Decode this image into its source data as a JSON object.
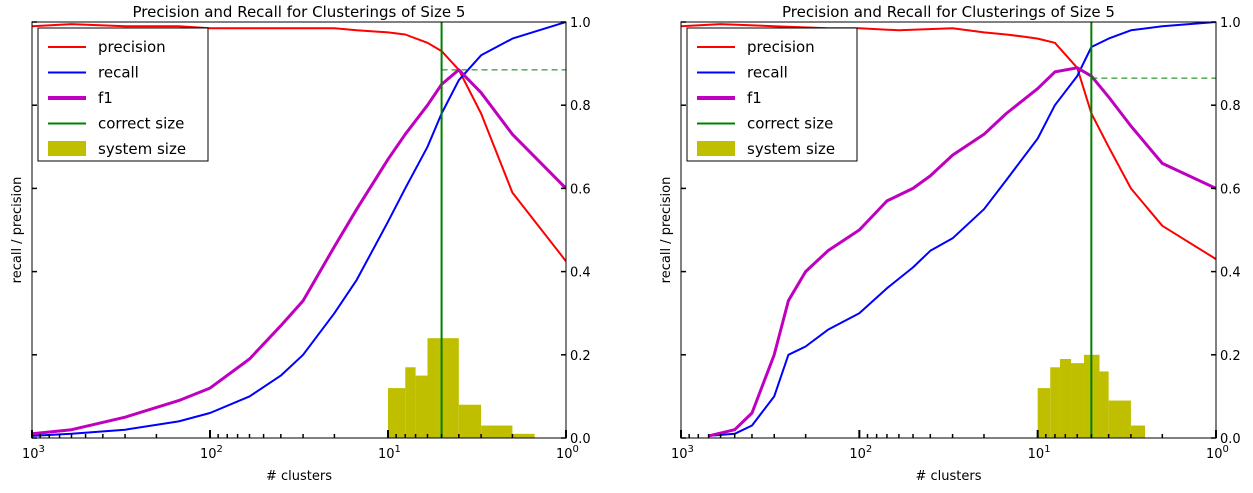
{
  "colors": {
    "precision": "#ff0000",
    "recall": "#0000ff",
    "f1": "#bf00bf",
    "correct": "#008000",
    "system": "#bfbf00",
    "threshold": "#008000"
  },
  "chart_data": [
    {
      "type": "line",
      "title": "Precision and Recall for Clusterings of Size 5",
      "xlabel": "# clusters",
      "ylabel": "recall / precision",
      "x_scale": "log",
      "x_reversed": true,
      "xlim": [
        1000,
        1
      ],
      "ylim": [
        0,
        1
      ],
      "grid": false,
      "legend_position": "top-left",
      "legend": [
        "precision",
        "recall",
        "f1",
        "correct size",
        "system size"
      ],
      "x_ticks": [
        {
          "base": "10",
          "exp": "3"
        },
        {
          "base": "10",
          "exp": "2"
        },
        {
          "base": "10",
          "exp": "1"
        },
        {
          "base": "10",
          "exp": "0"
        }
      ],
      "y_ticks": [
        "0.0",
        "0.2",
        "0.4",
        "0.6",
        "0.8",
        "1.0"
      ],
      "correct_size": 5,
      "series": [
        {
          "name": "precision",
          "x": [
            1000,
            600,
            300,
            150,
            100,
            60,
            30,
            20,
            15,
            10,
            8,
            6,
            5,
            4,
            3,
            2,
            1
          ],
          "y": [
            0.99,
            0.995,
            0.99,
            0.99,
            0.985,
            0.985,
            0.985,
            0.985,
            0.98,
            0.975,
            0.97,
            0.95,
            0.93,
            0.885,
            0.78,
            0.59,
            0.425
          ]
        },
        {
          "name": "recall",
          "x": [
            1000,
            600,
            300,
            150,
            100,
            60,
            40,
            30,
            20,
            15,
            10,
            8,
            6,
            5,
            4,
            3,
            2,
            1
          ],
          "y": [
            0.005,
            0.01,
            0.02,
            0.04,
            0.06,
            0.1,
            0.15,
            0.2,
            0.3,
            0.38,
            0.52,
            0.6,
            0.7,
            0.78,
            0.86,
            0.92,
            0.96,
            1.0
          ]
        },
        {
          "name": "f1",
          "x": [
            1000,
            600,
            300,
            150,
            100,
            60,
            40,
            30,
            20,
            15,
            10,
            8,
            6,
            5,
            4,
            3,
            2,
            1
          ],
          "y": [
            0.01,
            0.02,
            0.05,
            0.09,
            0.12,
            0.19,
            0.27,
            0.33,
            0.46,
            0.55,
            0.67,
            0.73,
            0.8,
            0.85,
            0.885,
            0.83,
            0.73,
            0.6
          ]
        }
      ],
      "system_size": {
        "bins": [
          [
            10,
            8
          ],
          [
            8,
            7
          ],
          [
            7,
            6
          ],
          [
            6,
            5.2
          ],
          [
            5.2,
            4
          ],
          [
            4,
            3
          ],
          [
            3,
            2
          ],
          [
            2,
            1.5
          ]
        ],
        "values": [
          0.12,
          0.17,
          0.15,
          0.24,
          0.24,
          0.08,
          0.03,
          0.01
        ]
      },
      "threshold_line": {
        "from_x": 5,
        "to_x": 1,
        "y": 0.885
      }
    },
    {
      "type": "line",
      "title": "Precision and Recall for Clusterings of Size 5",
      "xlabel": "# clusters",
      "ylabel": "recall / precision",
      "x_scale": "log",
      "x_reversed": true,
      "xlim": [
        1000,
        1
      ],
      "ylim": [
        0,
        1
      ],
      "grid": false,
      "legend_position": "top-left",
      "legend": [
        "precision",
        "recall",
        "f1",
        "correct size",
        "system size"
      ],
      "x_ticks": [
        {
          "base": "10",
          "exp": "3"
        },
        {
          "base": "10",
          "exp": "2"
        },
        {
          "base": "10",
          "exp": "1"
        },
        {
          "base": "10",
          "exp": "0"
        }
      ],
      "y_ticks": [
        "0.0",
        "0.2",
        "0.4",
        "0.6",
        "0.8",
        "1.0"
      ],
      "correct_size": 5,
      "series": [
        {
          "name": "precision",
          "x": [
            1000,
            600,
            300,
            150,
            100,
            60,
            30,
            20,
            15,
            12,
            10,
            8,
            6,
            5,
            4,
            3,
            2,
            1
          ],
          "y": [
            0.99,
            0.995,
            0.99,
            0.985,
            0.985,
            0.98,
            0.985,
            0.975,
            0.97,
            0.965,
            0.96,
            0.95,
            0.89,
            0.78,
            0.7,
            0.6,
            0.51,
            0.43
          ]
        },
        {
          "name": "recall",
          "x": [
            700,
            500,
            400,
            300,
            250,
            200,
            150,
            100,
            70,
            50,
            40,
            30,
            20,
            15,
            10,
            8,
            6,
            5,
            4,
            3,
            2,
            1
          ],
          "y": [
            0.005,
            0.01,
            0.03,
            0.1,
            0.2,
            0.22,
            0.26,
            0.3,
            0.36,
            0.41,
            0.45,
            0.48,
            0.55,
            0.62,
            0.72,
            0.8,
            0.87,
            0.94,
            0.96,
            0.98,
            0.99,
            1.0
          ]
        },
        {
          "name": "f1",
          "x": [
            700,
            500,
            400,
            300,
            250,
            200,
            150,
            100,
            70,
            50,
            40,
            30,
            20,
            15,
            10,
            8,
            6,
            5,
            4,
            3,
            2,
            1
          ],
          "y": [
            0.005,
            0.02,
            0.06,
            0.2,
            0.33,
            0.4,
            0.45,
            0.5,
            0.57,
            0.6,
            0.63,
            0.68,
            0.73,
            0.78,
            0.84,
            0.88,
            0.89,
            0.87,
            0.82,
            0.75,
            0.66,
            0.6
          ]
        }
      ],
      "system_size": {
        "bins": [
          [
            10,
            8.5
          ],
          [
            8.5,
            7.5
          ],
          [
            7.5,
            6.5
          ],
          [
            6.5,
            5.5
          ],
          [
            5.5,
            4.5
          ],
          [
            4.5,
            4
          ],
          [
            4,
            3
          ],
          [
            3,
            2.5
          ]
        ],
        "values": [
          0.12,
          0.17,
          0.19,
          0.18,
          0.2,
          0.16,
          0.09,
          0.03
        ]
      },
      "threshold_line": {
        "from_x": 5,
        "to_x": 1,
        "y": 0.865
      }
    }
  ]
}
